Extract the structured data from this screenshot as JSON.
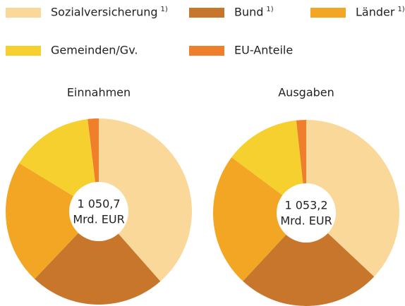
{
  "chart_data": [
    {
      "type": "pie",
      "title": "Einnahmen",
      "categories": [
        "Sozialversicherung",
        "Bund",
        "Länder",
        "Gemeinden/Gv.",
        "EU-Anteile"
      ],
      "category_notes": [
        "1)",
        "1)",
        "1)",
        null,
        null
      ],
      "colors": [
        "#f9d89a",
        "#c8762b",
        "#f2a623",
        "#f5d02e",
        "#f07f2b"
      ],
      "values": [
        38.5,
        23.6,
        21.6,
        14.4,
        1.9
      ],
      "total_label": "1 050,7",
      "unit": "Mrd. EUR"
    },
    {
      "type": "pie",
      "title": "Ausgaben",
      "categories": [
        "Sozialversicherung",
        "Bund",
        "Länder",
        "Gemeinden/Gv.",
        "EU-Anteile"
      ],
      "colors": [
        "#f9d89a",
        "#c8762b",
        "#f2a623",
        "#f5d02e",
        "#f07f2b"
      ],
      "values": [
        37.0,
        24.9,
        23.3,
        13.1,
        1.7
      ],
      "total_label": "1 053,2",
      "unit": "Mrd. EUR"
    }
  ]
}
